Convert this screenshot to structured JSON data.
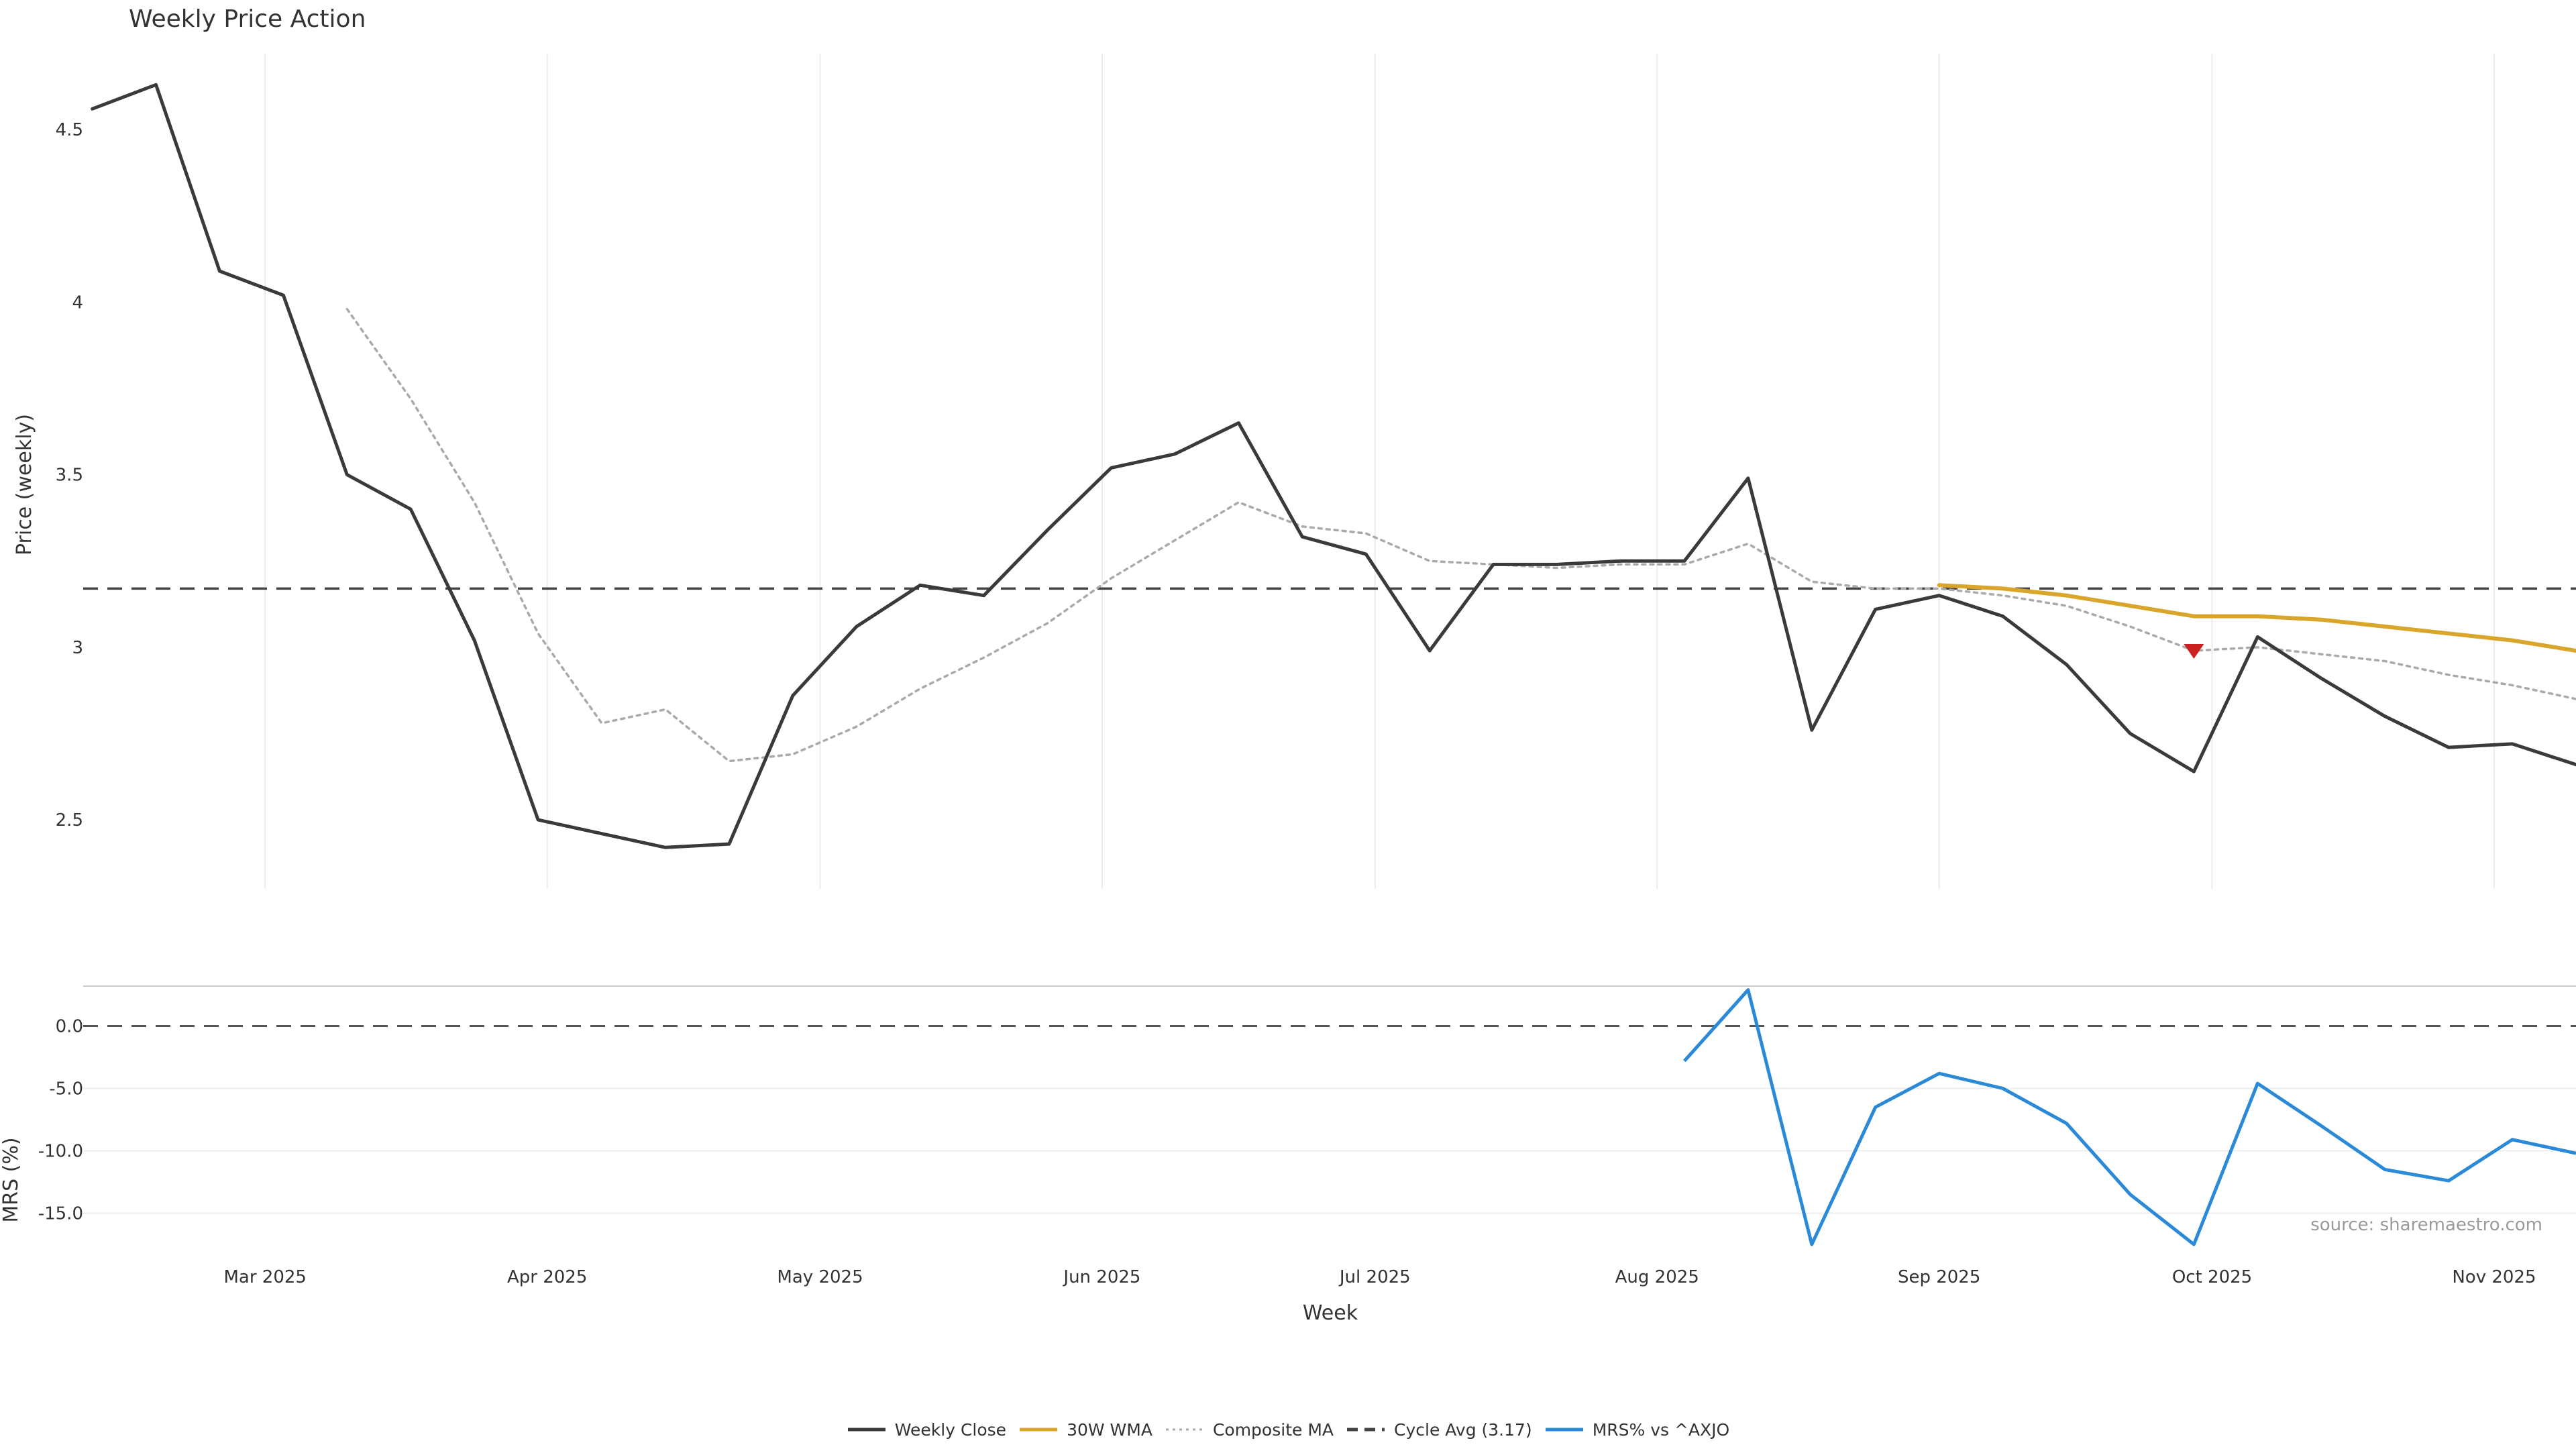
{
  "chart_data": [
    {
      "type": "line",
      "title": "Weekly Price Action",
      "ylabel": "Price (weekly)",
      "ylim": [
        2.3,
        4.72
      ],
      "yticks": [
        2.5,
        3,
        3.5,
        4,
        4.5
      ],
      "ytick_labels": [
        "2.5",
        "3",
        "3.5",
        "4",
        "4.5"
      ],
      "grid": "vertical",
      "series": [
        {
          "name": "Weekly Close",
          "color": "#3a3a3a",
          "x": [
            "2025-02-10",
            "2025-02-17",
            "2025-02-24",
            "2025-03-03",
            "2025-03-10",
            "2025-03-17",
            "2025-03-24",
            "2025-03-31",
            "2025-04-07",
            "2025-04-14",
            "2025-04-21",
            "2025-04-28",
            "2025-05-05",
            "2025-05-12",
            "2025-05-19",
            "2025-05-26",
            "2025-06-02",
            "2025-06-09",
            "2025-06-16",
            "2025-06-23",
            "2025-06-30",
            "2025-07-07",
            "2025-07-14",
            "2025-07-21",
            "2025-07-28",
            "2025-08-04",
            "2025-08-11",
            "2025-08-18",
            "2025-08-25",
            "2025-09-01",
            "2025-09-08",
            "2025-09-15",
            "2025-09-22",
            "2025-09-29",
            "2025-10-06",
            "2025-10-13",
            "2025-10-20",
            "2025-10-27",
            "2025-11-03",
            "2025-11-10"
          ],
          "y": [
            4.56,
            4.63,
            4.09,
            4.02,
            3.5,
            3.4,
            3.02,
            2.5,
            2.46,
            2.42,
            2.43,
            2.86,
            3.06,
            3.18,
            3.15,
            3.34,
            3.52,
            3.56,
            3.65,
            3.32,
            3.27,
            2.99,
            3.24,
            3.24,
            3.25,
            3.25,
            3.49,
            2.76,
            3.11,
            3.15,
            3.09,
            2.95,
            2.75,
            2.64,
            3.03,
            2.91,
            2.8,
            2.71,
            2.72,
            2.66
          ]
        },
        {
          "name": "30W WMA",
          "color": "#d9a52a",
          "x": [
            "2025-09-01",
            "2025-09-08",
            "2025-09-15",
            "2025-09-22",
            "2025-09-29",
            "2025-10-06",
            "2025-10-13",
            "2025-10-20",
            "2025-10-27",
            "2025-11-03",
            "2025-11-10"
          ],
          "y": [
            3.18,
            3.17,
            3.15,
            3.12,
            3.09,
            3.09,
            3.08,
            3.06,
            3.04,
            3.02,
            2.99
          ]
        },
        {
          "name": "Composite MA",
          "color": "#aaaaaa",
          "x": [
            "2025-03-10",
            "2025-03-17",
            "2025-03-24",
            "2025-03-31",
            "2025-04-07",
            "2025-04-14",
            "2025-04-21",
            "2025-04-28",
            "2025-05-05",
            "2025-05-12",
            "2025-05-19",
            "2025-05-26",
            "2025-06-02",
            "2025-06-09",
            "2025-06-16",
            "2025-06-23",
            "2025-06-30",
            "2025-07-07",
            "2025-07-14",
            "2025-07-21",
            "2025-07-28",
            "2025-08-04",
            "2025-08-11",
            "2025-08-18",
            "2025-08-25",
            "2025-09-01",
            "2025-09-08",
            "2025-09-15",
            "2025-09-22",
            "2025-09-29",
            "2025-10-06",
            "2025-10-13",
            "2025-10-20",
            "2025-10-27",
            "2025-11-03",
            "2025-11-10"
          ],
          "y": [
            3.98,
            3.72,
            3.42,
            3.04,
            2.78,
            2.82,
            2.67,
            2.69,
            2.77,
            2.88,
            2.97,
            3.07,
            3.2,
            3.31,
            3.42,
            3.35,
            3.33,
            3.25,
            3.24,
            3.23,
            3.24,
            3.24,
            3.3,
            3.19,
            3.17,
            3.17,
            3.15,
            3.12,
            3.06,
            2.99,
            3.0,
            2.98,
            2.96,
            2.92,
            2.89,
            2.85
          ]
        },
        {
          "name": "Cycle Avg (3.17)",
          "color": "#444444",
          "value": 3.17
        }
      ],
      "markers": [
        {
          "x": "2025-09-29",
          "y": 2.99,
          "symbol": "triangle-down",
          "color": "#cc1f1f"
        }
      ]
    },
    {
      "type": "line",
      "ylabel": "MRS (%)",
      "ylim": [
        -18.2,
        3.2
      ],
      "yticks": [
        0,
        -5,
        -10,
        -15
      ],
      "ytick_labels": [
        "0.0",
        "-5.0",
        "-10.0",
        "-15.0"
      ],
      "grid": "horizontal",
      "series": [
        {
          "name": "MRS% vs ^AXJO",
          "color": "#2b8ad8",
          "x": [
            "2025-08-04",
            "2025-08-11",
            "2025-08-18",
            "2025-08-25",
            "2025-09-01",
            "2025-09-08",
            "2025-09-15",
            "2025-09-22",
            "2025-09-29",
            "2025-10-06",
            "2025-10-13",
            "2025-10-20",
            "2025-10-27",
            "2025-11-03",
            "2025-11-10"
          ],
          "y": [
            -2.8,
            2.9,
            -17.5,
            -6.5,
            -3.8,
            -5.0,
            -7.8,
            -13.5,
            -17.5,
            -4.6,
            -8.0,
            -11.5,
            -12.4,
            -9.1,
            -10.2
          ]
        }
      ],
      "zero_line": 0
    }
  ],
  "xaxis": {
    "label": "Week",
    "ticks": [
      "2025-03-01",
      "2025-04-01",
      "2025-05-01",
      "2025-06-01",
      "2025-07-01",
      "2025-08-01",
      "2025-09-01",
      "2025-10-01",
      "2025-11-01"
    ],
    "tick_labels": [
      "Mar 2025",
      "Apr 2025",
      "May 2025",
      "Jun 2025",
      "Jul 2025",
      "Aug 2025",
      "Sep 2025",
      "Oct 2025",
      "Nov 2025"
    ],
    "range": [
      "2025-02-09",
      "2025-11-10"
    ]
  },
  "legend": {
    "placement": "bottom-center",
    "items": [
      {
        "label": "Weekly Close",
        "color": "#3a3a3a",
        "style": "solid"
      },
      {
        "label": "30W WMA",
        "color": "#d9a52a",
        "style": "solid"
      },
      {
        "label": "Composite MA",
        "color": "#aaaaaa",
        "style": "dotted"
      },
      {
        "label": "Cycle Avg (3.17)",
        "color": "#444444",
        "style": "dashed"
      },
      {
        "label": "MRS% vs ^AXJO",
        "color": "#2b8ad8",
        "style": "solid"
      }
    ]
  },
  "source": "source: sharemaestro.com"
}
